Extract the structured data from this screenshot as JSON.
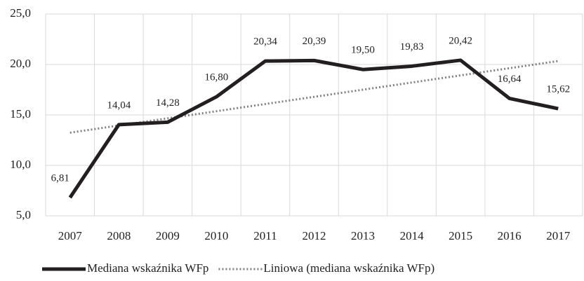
{
  "chart_data": {
    "type": "line",
    "categories": [
      "2007",
      "2008",
      "2009",
      "2010",
      "2011",
      "2012",
      "2013",
      "2014",
      "2015",
      "2016",
      "2017"
    ],
    "series": [
      {
        "name": "Mediana wskaźnika WFp",
        "color": "#231f20",
        "dash": "solid",
        "values": [
          6.81,
          14.04,
          14.28,
          16.8,
          20.34,
          20.39,
          19.5,
          19.83,
          20.42,
          16.64,
          15.62
        ],
        "value_labels": [
          "6,81",
          "14,04",
          "14,28",
          "16,80",
          "20,34",
          "20,39",
          "19,50",
          "19,83",
          "20,42",
          "16,64",
          "15,62"
        ]
      },
      {
        "name": "Liniowa (mediana wskaźnika WFp)",
        "color": "#808080",
        "dash": "dotted",
        "values": [
          13.24,
          13.95,
          14.66,
          15.37,
          16.08,
          16.79,
          17.5,
          18.21,
          18.92,
          19.63,
          20.34
        ]
      }
    ],
    "ylim": [
      5,
      25
    ],
    "yticks": [
      {
        "value": 5,
        "label": "5,0"
      },
      {
        "value": 10,
        "label": "10,0"
      },
      {
        "value": 15,
        "label": "15,0"
      },
      {
        "value": 20,
        "label": "20,0"
      },
      {
        "value": 25,
        "label": "25,0"
      }
    ],
    "grid": true,
    "legend": "bottom"
  }
}
